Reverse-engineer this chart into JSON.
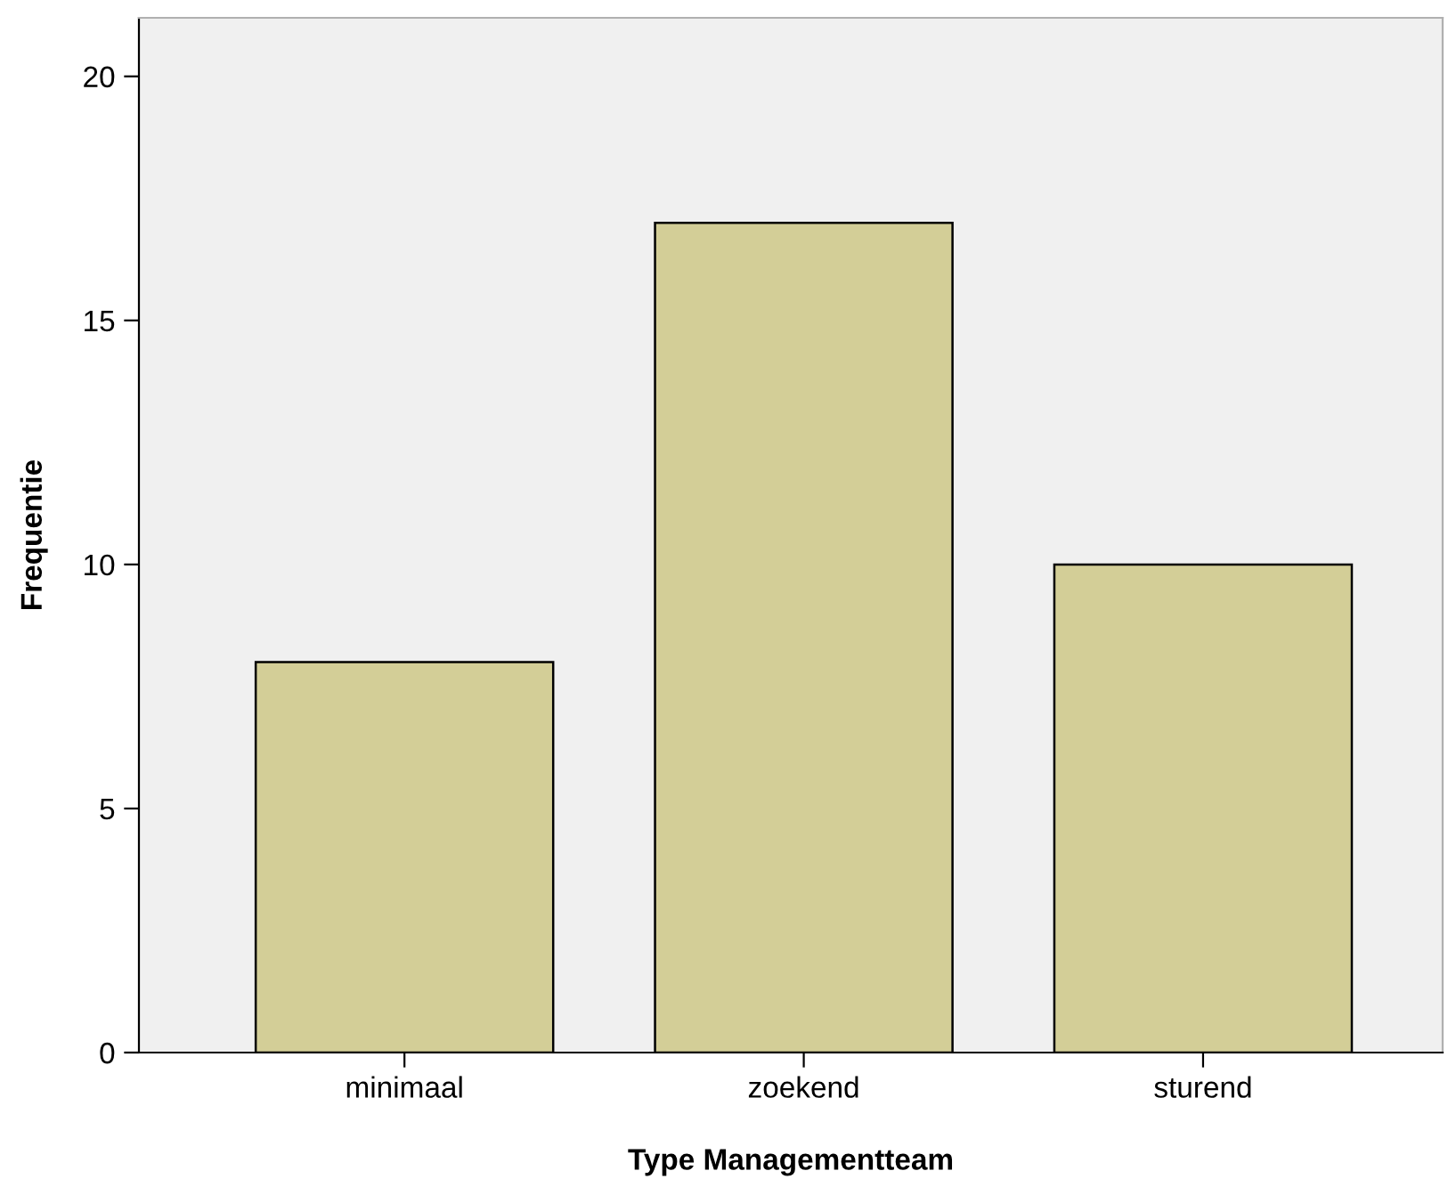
{
  "chart_data": {
    "type": "bar",
    "xlabel": "Type Managementteam",
    "ylabel": "Frequentie",
    "categories": [
      "minimaal",
      "zoekend",
      "sturend"
    ],
    "values": [
      8,
      17,
      10
    ],
    "color": "#d3ce97",
    "ylim": [
      0,
      21.2
    ],
    "yticks": [
      0,
      5,
      10,
      15,
      20
    ],
    "grid": false
  }
}
